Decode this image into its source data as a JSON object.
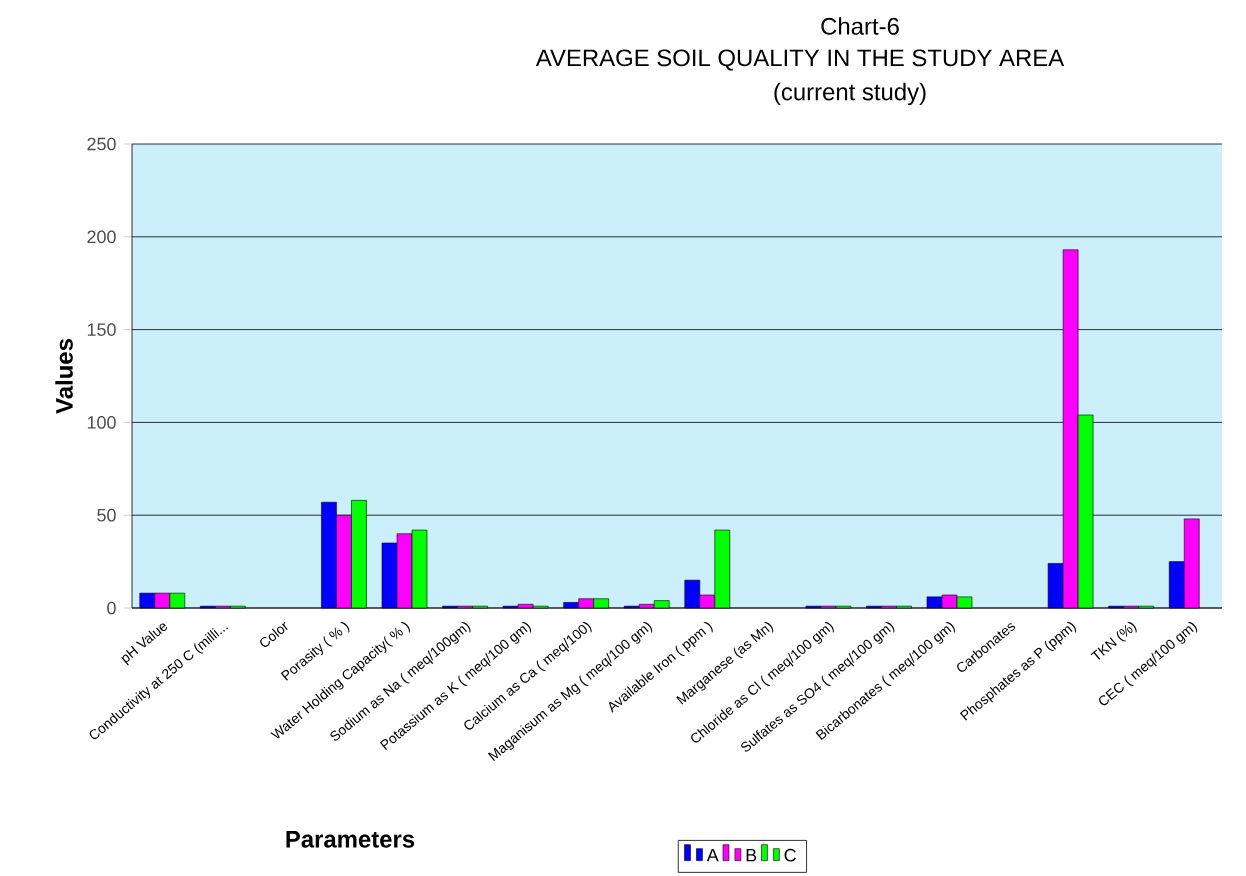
{
  "chart_data": {
    "type": "bar",
    "title": "Chart-6",
    "subtitle": "AVERAGE SOIL QUALITY IN THE STUDY AREA",
    "annotations": [
      "(current study)"
    ],
    "xlabel": "Parameters",
    "ylabel": "Values",
    "categories": [
      "pH Value",
      "Conductivity at 250 C (milli...",
      "Color",
      "Porasity ( % )",
      "Water Holding Capacity( % )",
      "Sodium as Na  ( meq/100gm)",
      "Potassium as K  ( meq/100 gm)",
      "Calcium as Ca ( meq/100)",
      "Maganisum as Mg  ( meq/100 gm)",
      "Available Iron ( ppm )",
      "Marganese (as Mn)",
      "Chloride as Cl  ( meq/100 gm)",
      "Sulfates as SO4   ( meq/100 gm)",
      "Bicarbonates ( meq/100 gm)",
      "Carbonates",
      "Phosphates as P  (ppm)",
      "TKN (%)",
      "CEC ( meq/100 gm)"
    ],
    "series": [
      {
        "name": "A",
        "color": "#0000ff",
        "values": [
          8,
          1,
          null,
          57,
          35,
          1,
          1,
          3,
          1,
          15,
          null,
          1,
          1,
          6,
          null,
          24,
          1,
          25
        ]
      },
      {
        "name": "B",
        "color": "#ff00ff",
        "values": [
          8,
          1,
          null,
          50,
          40,
          1,
          2,
          5,
          2,
          7,
          null,
          1,
          1,
          7,
          null,
          193,
          1,
          48
        ]
      },
      {
        "name": "C",
        "color": "#00ff00",
        "values": [
          8,
          1,
          null,
          58,
          42,
          1,
          1,
          5,
          4,
          42,
          null,
          1,
          1,
          6,
          null,
          104,
          1,
          null
        ]
      }
    ],
    "ylim": [
      0,
      250
    ],
    "yticks": [
      0,
      50,
      100,
      150,
      200,
      250
    ],
    "grid": "y",
    "legend": "bottom"
  }
}
